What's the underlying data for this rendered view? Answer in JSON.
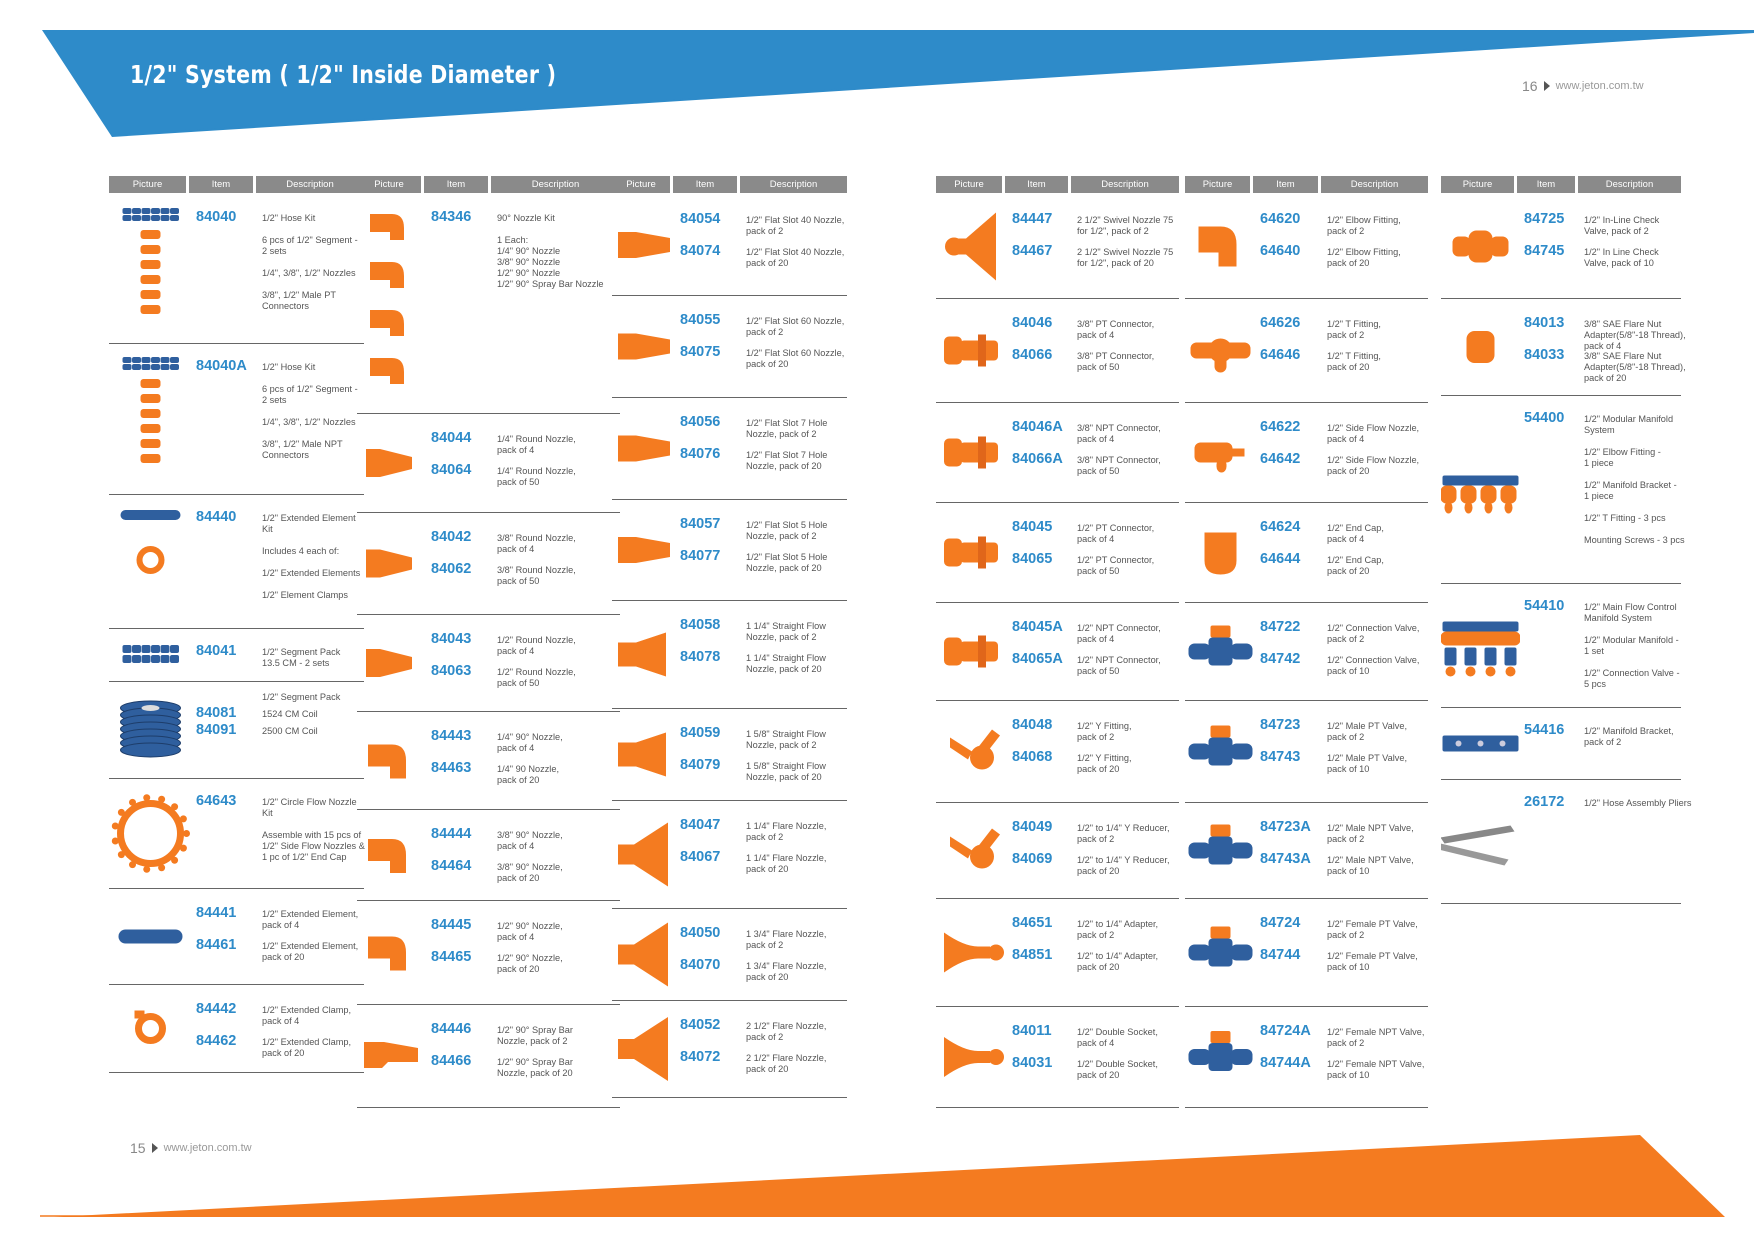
{
  "title": "1/2\" System  ( 1/2\" Inside Diameter )",
  "page_right": {
    "number": "16",
    "url": "www.jeton.com.tw"
  },
  "page_left": {
    "number": "15",
    "url": "www.jeton.com.tw"
  },
  "colors": {
    "blue_band": "#2E8BC9",
    "orange_band": "#F47B20",
    "item_blue": "#2E8BC9",
    "part_orange": "#F47B20",
    "part_blue": "#2F5F9E",
    "header_grey": "#8a8a8a"
  },
  "headers": {
    "picture": "Picture",
    "item": "Item",
    "description": "Description"
  },
  "columns": [
    {
      "rows": [
        {
          "pic": "hose-kit",
          "entries": [
            {
              "item": "84040",
              "desc": "1/2\" Hose Kit\n\n6 pcs of 1/2\" Segment -\n2 sets\n\n1/4\", 3/8\", 1/2\" Nozzles\n\n3/8\", 1/2\" Male PT\nConnectors"
            }
          ]
        },
        {
          "pic": "hose-kit",
          "entries": [
            {
              "item": "84040A",
              "desc": "1/2\" Hose Kit\n\n6 pcs of 1/2\" Segment -\n2 sets\n\n1/4\", 3/8\", 1/2\" Nozzles\n\n3/8\", 1/2\" Male NPT\nConnectors"
            }
          ]
        },
        {
          "pic": "extended-element-kit",
          "entries": [
            {
              "item": "84440",
              "desc": "1/2\" Extended Element\nKit\n\nIncludes 4 each of:\n\n1/2\" Extended Elements\n\n1/2\" Element Clamps"
            }
          ]
        },
        {
          "pic": "segment-pack",
          "entries": [
            {
              "item": "84041",
              "desc": "1/2\"  Segment Pack\n13.5 CM - 2 sets"
            }
          ]
        },
        {
          "pic": "hose-coil",
          "entries": [
            {
              "item": "",
              "desc": "1/2\"  Segment Pack"
            },
            {
              "item": "84081",
              "desc": "1524 CM Coil"
            },
            {
              "item": "84091",
              "desc": "2500 CM Coil"
            }
          ]
        },
        {
          "pic": "circle-nozzle",
          "entries": [
            {
              "item": "64643",
              "desc": "1/2\" Circle Flow Nozzle\nKit\n\nAssemble with 15 pcs of\n1/2\" Side Flow Nozzles  &\n1 pc of 1/2\" End Cap"
            }
          ]
        },
        {
          "pic": "extended-element",
          "entries": [
            {
              "item": "84441",
              "desc": "1/2\" Extended Element,\npack of 4"
            },
            {
              "item": "84461",
              "desc": "1/2\" Extended Element,\npack of 20"
            }
          ]
        },
        {
          "pic": "clamp",
          "entries": [
            {
              "item": "84442",
              "desc": "1/2\" Extended Clamp,\npack of 4"
            },
            {
              "item": "84462",
              "desc": "1/2\" Extended Clamp,\npack of 20"
            }
          ]
        }
      ]
    },
    {
      "rows": [
        {
          "pic": "nozzle-90-kit",
          "entries": [
            {
              "item": "84346",
              "desc": "90° Nozzle Kit\n\n1 Each:\n1/4\" 90° Nozzle\n3/8\" 90° Nozzle\n1/2\" 90° Nozzle\n1/2\" 90° Spray Bar Nozzle"
            }
          ]
        },
        {
          "pic": "round-nozzle-long",
          "entries": [
            {
              "item": "84044",
              "desc": "1/4\" Round Nozzle,\npack of 4"
            },
            {
              "item": "84064",
              "desc": "1/4\" Round Nozzle,\npack of 50"
            }
          ]
        },
        {
          "pic": "round-nozzle-mid",
          "entries": [
            {
              "item": "84042",
              "desc": "3/8\" Round Nozzle,\npack of 4"
            },
            {
              "item": "84062",
              "desc": "3/8\" Round Nozzle,\npack of 50"
            }
          ]
        },
        {
          "pic": "round-nozzle-short",
          "entries": [
            {
              "item": "84043",
              "desc": "1/2\" Round Nozzle,\npack of 4"
            },
            {
              "item": "84063",
              "desc": "1/2\" Round Nozzle,\npack of 50"
            }
          ]
        },
        {
          "pic": "nozzle-90",
          "entries": [
            {
              "item": "84443",
              "desc": "1/4\" 90° Nozzle,\npack of 4"
            },
            {
              "item": "84463",
              "desc": "1/4\" 90 Nozzle,\npack of 20"
            }
          ]
        },
        {
          "pic": "nozzle-90",
          "entries": [
            {
              "item": "84444",
              "desc": "3/8\" 90° Nozzle,\npack of 4"
            },
            {
              "item": "84464",
              "desc": "3/8\" 90° Nozzle,\npack of 20"
            }
          ]
        },
        {
          "pic": "nozzle-90-wide",
          "entries": [
            {
              "item": "84445",
              "desc": "1/2\" 90° Nozzle,\npack of 4"
            },
            {
              "item": "84465",
              "desc": "1/2\" 90° Nozzle,\npack of 20"
            }
          ]
        },
        {
          "pic": "spray-bar",
          "entries": [
            {
              "item": "84446",
              "desc": "1/2\" 90° Spray Bar\nNozzle,  pack of 2"
            },
            {
              "item": "84466",
              "desc": "1/2\" 90° Spray Bar\nNozzle,  pack of 20"
            }
          ]
        }
      ]
    },
    {
      "rows": [
        {
          "pic": "flat-slot",
          "entries": [
            {
              "item": "84054",
              "desc": "1/2\" Flat Slot 40 Nozzle,\npack of 2"
            },
            {
              "item": "84074",
              "desc": "1/2\" Flat Slot 40 Nozzle,\npack of 20"
            }
          ]
        },
        {
          "pic": "flat-slot",
          "entries": [
            {
              "item": "84055",
              "desc": "1/2\" Flat Slot 60 Nozzle,\npack of 2"
            },
            {
              "item": "84075",
              "desc": "1/2\" Flat Slot 60 Nozzle,\npack of 20"
            }
          ]
        },
        {
          "pic": "flat-slot",
          "entries": [
            {
              "item": "84056",
              "desc": "1/2\" Flat Slot 7 Hole\nNozzle, pack of 2"
            },
            {
              "item": "84076",
              "desc": "1/2\" Flat Slot 7 Hole\nNozzle, pack of 20"
            }
          ]
        },
        {
          "pic": "flat-slot",
          "entries": [
            {
              "item": "84057",
              "desc": "1/2\" Flat Slot 5 Hole\nNozzle, pack of 2"
            },
            {
              "item": "84077",
              "desc": "1/2\" Flat Slot 5 Hole\nNozzle, pack of 20"
            }
          ]
        },
        {
          "pic": "straight-flow",
          "entries": [
            {
              "item": "84058",
              "desc": "1 1/4\" Straight Flow\nNozzle, pack of 2"
            },
            {
              "item": "84078",
              "desc": "1 1/4\" Straight Flow\nNozzle, pack of 20"
            }
          ]
        },
        {
          "pic": "straight-flow-wide",
          "entries": [
            {
              "item": "84059",
              "desc": "1 5/8\" Straight Flow\nNozzle, pack of 2"
            },
            {
              "item": "84079",
              "desc": "1 5/8\" Straight Flow\nNozzle, pack of 20"
            }
          ]
        },
        {
          "pic": "flare",
          "entries": [
            {
              "item": "84047",
              "desc": "1 1/4\" Flare Nozzle,\npack of 2"
            },
            {
              "item": "84067",
              "desc": "1 1/4\" Flare Nozzle,\npack of 20"
            }
          ]
        },
        {
          "pic": "flare",
          "entries": [
            {
              "item": "84050",
              "desc": "1 3/4\" Flare Nozzle,\npack of 2"
            },
            {
              "item": "84070",
              "desc": "1 3/4\" Flare Nozzle,\npack of 20"
            }
          ]
        },
        {
          "pic": "flare",
          "entries": [
            {
              "item": "84052",
              "desc": "2 1/2\" Flare Nozzle,\npack of 2"
            },
            {
              "item": "84072",
              "desc": "2 1/2\" Flare Nozzle,\npack of 20"
            }
          ]
        }
      ]
    },
    {
      "rows": [
        {
          "pic": "swivel",
          "entries": [
            {
              "item": "84447",
              "desc": "2 1/2\" Swivel Nozzle 75\nfor 1/2\", pack of 2"
            },
            {
              "item": "84467",
              "desc": "2 1/2\" Swivel Nozzle 75\nfor 1/2\", pack of 20"
            }
          ]
        },
        {
          "pic": "connector",
          "entries": [
            {
              "item": "84046",
              "desc": "3/8\" PT Connector,\npack of 4"
            },
            {
              "item": "84066",
              "desc": "3/8\" PT Connector,\npack of 50"
            }
          ]
        },
        {
          "pic": "connector",
          "entries": [
            {
              "item": "84046A",
              "desc": "3/8\" NPT Connector,\npack of 4"
            },
            {
              "item": "84066A",
              "desc": "3/8\" NPT Connector,\npack of 50"
            }
          ]
        },
        {
          "pic": "connector-large",
          "entries": [
            {
              "item": "84045",
              "desc": "1/2\" PT Connector,\npack of 4"
            },
            {
              "item": "84065",
              "desc": "1/2\" PT Connector,\npack of 50"
            }
          ]
        },
        {
          "pic": "connector-large",
          "entries": [
            {
              "item": "84045A",
              "desc": "1/2\" NPT Connector,\npack of 4"
            },
            {
              "item": "84065A",
              "desc": "1/2\" NPT Connector,\npack of 50"
            }
          ]
        },
        {
          "pic": "y-fitting",
          "entries": [
            {
              "item": "84048",
              "desc": "1/2\" Y Fitting,\npack of 2"
            },
            {
              "item": "84068",
              "desc": "1/2\" Y Fitting,\npack of 20"
            }
          ]
        },
        {
          "pic": "y-fitting",
          "entries": [
            {
              "item": "84049",
              "desc": "1/2\" to 1/4\" Y Reducer,\npack of 2"
            },
            {
              "item": "84069",
              "desc": "1/2\" to 1/4\" Y Reducer,\npack of 20"
            }
          ]
        },
        {
          "pic": "adapter",
          "entries": [
            {
              "item": "84651",
              "desc": "1/2\" to 1/4\" Adapter,\npack of 2"
            },
            {
              "item": "84851",
              "desc": "1/2\" to 1/4\" Adapter,\npack of 20"
            }
          ]
        },
        {
          "pic": "socket",
          "entries": [
            {
              "item": "84011",
              "desc": "1/2\" Double Socket,\npack of 4"
            },
            {
              "item": "84031",
              "desc": "1/2\" Double Socket,\npack of 20"
            }
          ]
        }
      ]
    },
    {
      "rows": [
        {
          "pic": "elbow",
          "entries": [
            {
              "item": "64620",
              "desc": "1/2\" Elbow Fitting,\npack of 2"
            },
            {
              "item": "64640",
              "desc": "1/2\" Elbow Fitting,\npack of 20"
            }
          ]
        },
        {
          "pic": "t-fitting",
          "entries": [
            {
              "item": "64626",
              "desc": "1/2\" T Fitting,\npack of 2"
            },
            {
              "item": "64646",
              "desc": "1/2\" T Fitting,\npack of 20"
            }
          ]
        },
        {
          "pic": "side-flow",
          "entries": [
            {
              "item": "64622",
              "desc": "1/2\" Side Flow Nozzle,\npack of 4"
            },
            {
              "item": "64642",
              "desc": "1/2\" Side Flow Nozzle,\npack of 20"
            }
          ]
        },
        {
          "pic": "end-cap",
          "entries": [
            {
              "item": "64624",
              "desc": "1/2\" End Cap,\npack of 4"
            },
            {
              "item": "64644",
              "desc": "1/2\" End Cap,\npack of 20"
            }
          ]
        },
        {
          "pic": "valve",
          "entries": [
            {
              "item": "84722",
              "desc": "1/2\" Connection Valve,\npack of 2"
            },
            {
              "item": "84742",
              "desc": "1/2\" Connection Valve,\npack of 10"
            }
          ]
        },
        {
          "pic": "valve",
          "entries": [
            {
              "item": "84723",
              "desc": "1/2\" Male PT Valve,\npack of 2"
            },
            {
              "item": "84743",
              "desc": "1/2\" Male PT Valve,\npack of 10"
            }
          ]
        },
        {
          "pic": "valve",
          "entries": [
            {
              "item": "84723A",
              "desc": "1/2\" Male NPT Valve,\npack of 2"
            },
            {
              "item": "84743A",
              "desc": "1/2\" Male NPT Valve,\npack of 10"
            }
          ]
        },
        {
          "pic": "valve",
          "entries": [
            {
              "item": "84724",
              "desc": "1/2\" Female PT Valve,\npack of 2"
            },
            {
              "item": "84744",
              "desc": "1/2\" Female PT Valve,\npack of 10"
            }
          ]
        },
        {
          "pic": "valve",
          "entries": [
            {
              "item": "84724A",
              "desc": "1/2\" Female NPT Valve,\npack of 2"
            },
            {
              "item": "84744A",
              "desc": "1/2\" Female NPT Valve,\npack of 10"
            }
          ]
        }
      ]
    },
    {
      "rows": [
        {
          "pic": "check-valve",
          "entries": [
            {
              "item": "84725",
              "desc": "1/2\" In-Line Check\nValve, pack of 2"
            },
            {
              "item": "84745",
              "desc": "1/2\" In Line Check\nValve, pack of 10"
            }
          ]
        },
        {
          "pic": "flare-nut",
          "entries": [
            {
              "item": "84013",
              "desc": "3/8\" SAE Flare Nut\nAdapter(5/8\"-18 Thread),\npack of 4"
            },
            {
              "item": "84033",
              "desc": "3/8\" SAE Flare Nut\nAdapter(5/8\"-18 Thread),\npack of 20"
            }
          ]
        },
        {
          "pic": "manifold-system",
          "entries": [
            {
              "item": "54400",
              "desc": "1/2\" Modular Manifold\nSystem\n\n1/2\" Elbow Fitting -\n1 piece\n\n1/2\" Manifold Bracket -\n1 piece\n\n1/2\" T Fitting  - 3 pcs\n\nMounting Screws - 3 pcs"
            }
          ]
        },
        {
          "pic": "flow-control",
          "entries": [
            {
              "item": "54410",
              "desc": "1/2\" Main Flow Control\nManifold System\n\n1/2\" Modular Manifold -\n1 set\n\n1/2\" Connection Valve -\n5 pcs"
            }
          ]
        },
        {
          "pic": "bracket",
          "entries": [
            {
              "item": "54416",
              "desc": "1/2\" Manifold Bracket,\npack of 2"
            }
          ]
        },
        {
          "pic": "pliers",
          "entries": [
            {
              "item": "26172",
              "desc": "1/2\" Hose Assembly Pliers"
            }
          ]
        }
      ]
    }
  ]
}
